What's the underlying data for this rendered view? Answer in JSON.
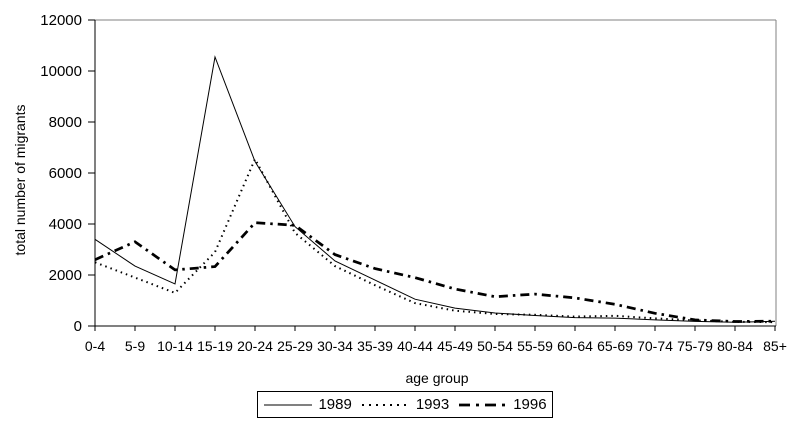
{
  "window": {
    "background": "#ffffff"
  },
  "chart_data": {
    "type": "line",
    "title": "",
    "xlabel": "age group",
    "ylabel": "total number of migrants",
    "ylim": [
      0,
      12000
    ],
    "y_ticks": [
      0,
      2000,
      4000,
      6000,
      8000,
      10000,
      12000
    ],
    "categories": [
      "0-4",
      "5-9",
      "10-14",
      "15-19",
      "20-24",
      "25-29",
      "30-34",
      "35-39",
      "40-44",
      "45-49",
      "50-54",
      "55-59",
      "60-64",
      "65-69",
      "70-74",
      "75-79",
      "80-84",
      "85+"
    ],
    "series": [
      {
        "name": "1989",
        "style": "solid",
        "values": [
          3400,
          2350,
          1650,
          10550,
          6450,
          3900,
          2550,
          1800,
          1050,
          700,
          510,
          410,
          330,
          310,
          240,
          180,
          150,
          185
        ]
      },
      {
        "name": "1993",
        "style": "dotted",
        "values": [
          2500,
          1900,
          1300,
          2900,
          6550,
          3650,
          2350,
          1600,
          900,
          600,
          470,
          440,
          370,
          400,
          300,
          220,
          165,
          150
        ]
      },
      {
        "name": "1996",
        "style": "dashdot",
        "values": [
          2600,
          3300,
          2200,
          2330,
          4050,
          3950,
          2800,
          2250,
          1900,
          1450,
          1150,
          1250,
          1100,
          850,
          500,
          240,
          175,
          190
        ]
      }
    ],
    "legend_position": "bottom-center",
    "grid": "off",
    "colors": {
      "line": "#000000",
      "axis": "#000000",
      "plot_frame": "#808080",
      "background": "#ffffff"
    }
  }
}
